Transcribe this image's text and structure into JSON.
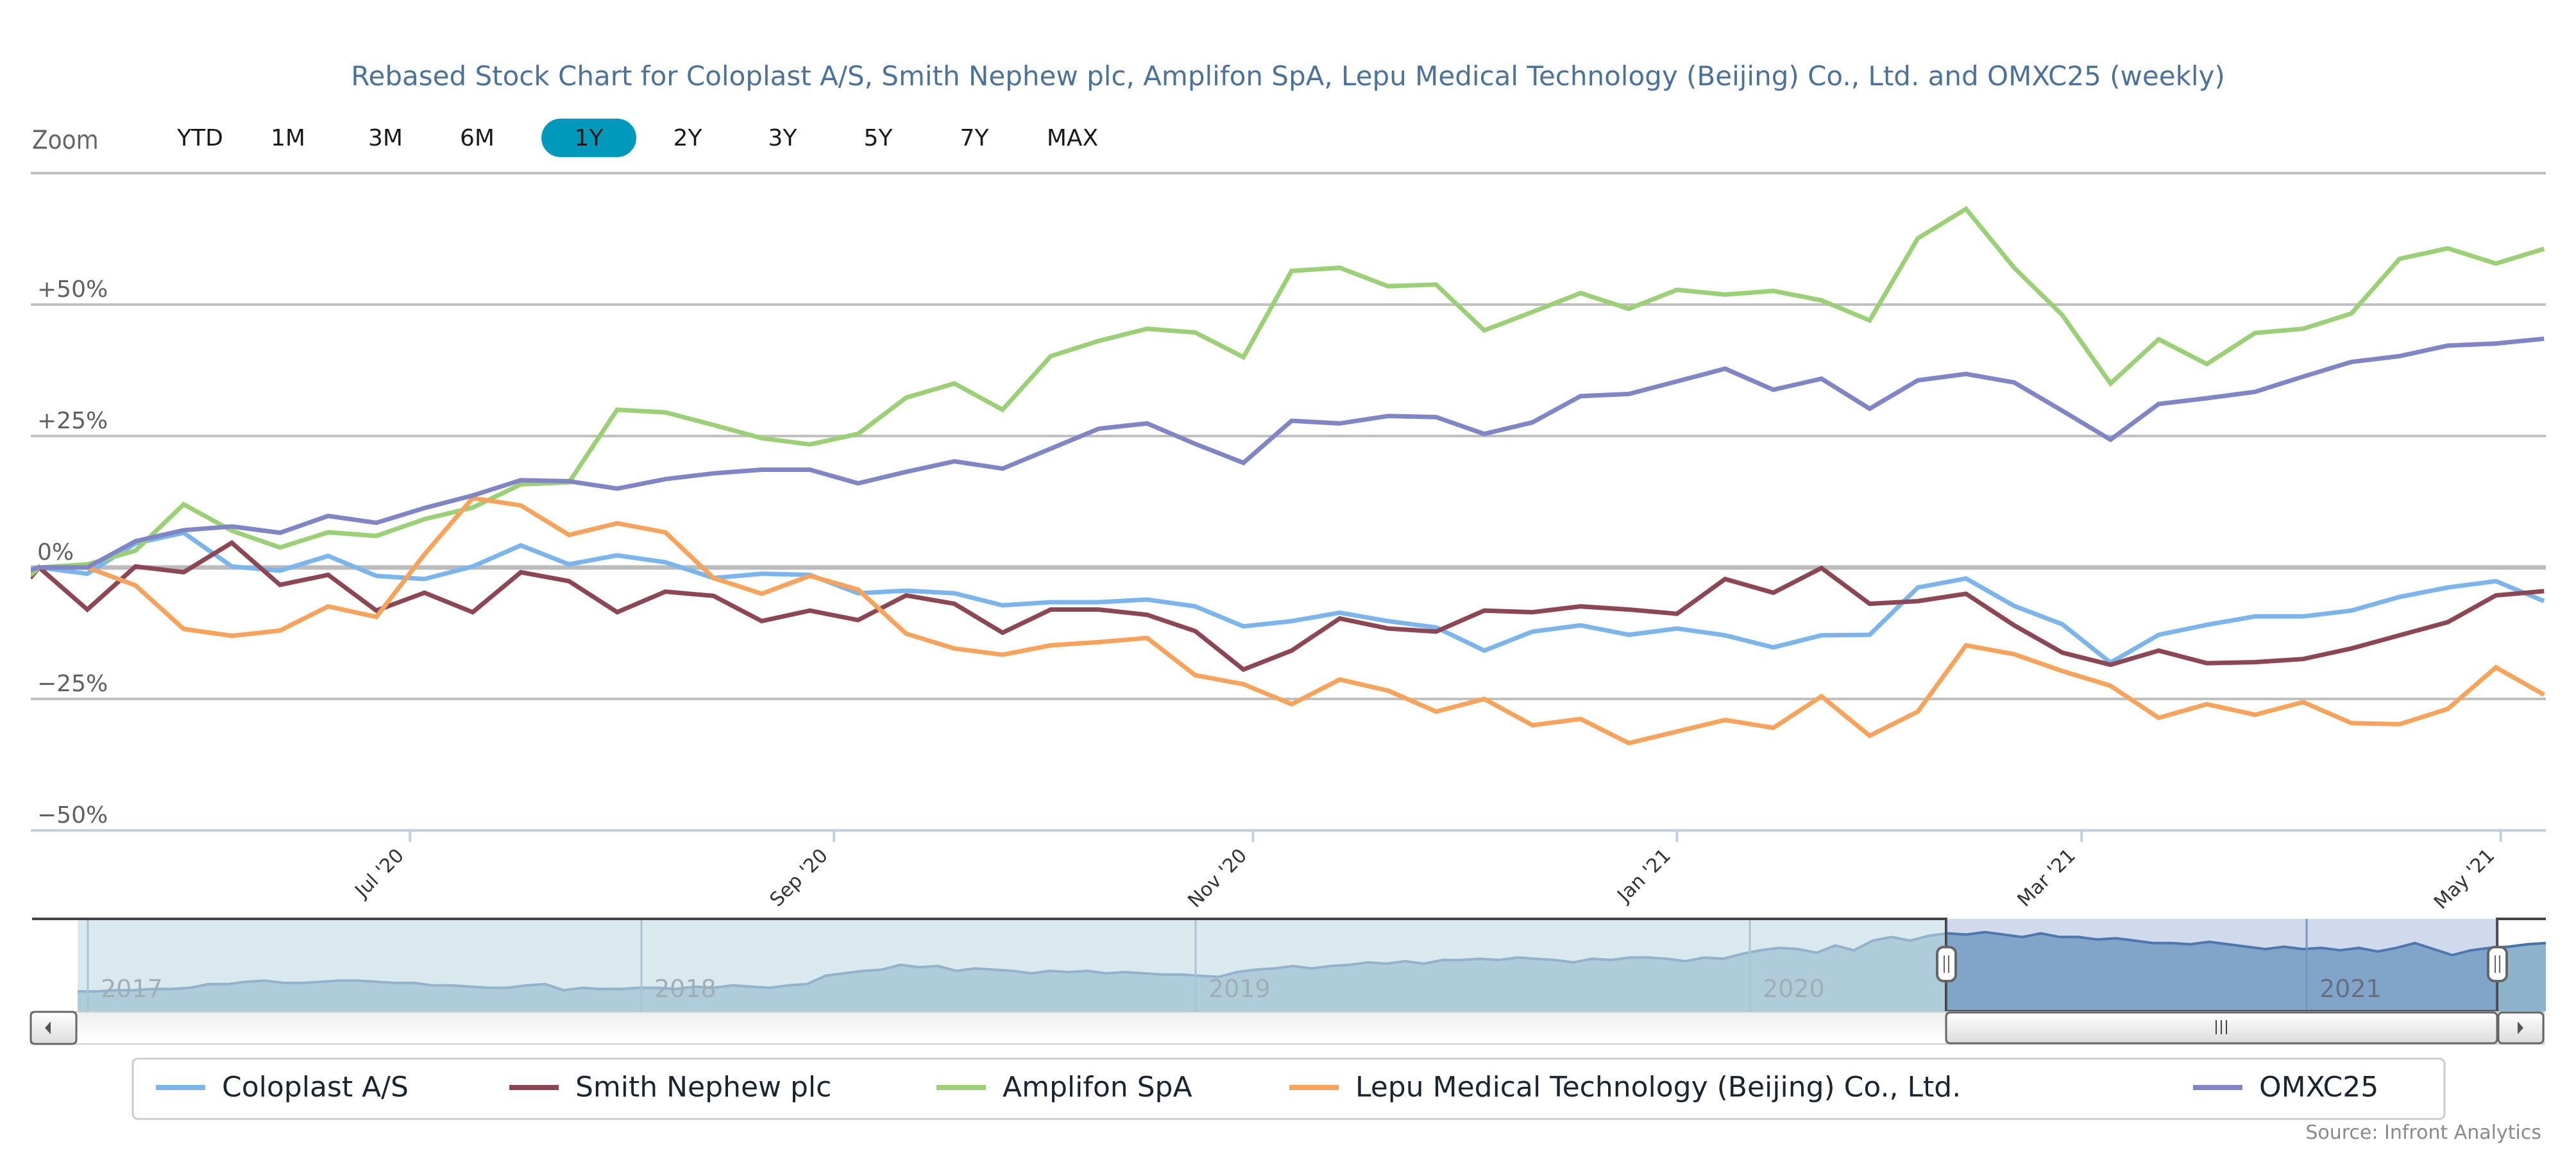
{
  "title": "Rebased Stock Chart for Coloplast A/S, Smith Nephew plc, Amplifon SpA, Lepu Medical Technology (Beijing) Co., Ltd. and OMXC25 (weekly)",
  "range_selector": {
    "label": "Zoom",
    "buttons": [
      "YTD",
      "1M",
      "3M",
      "6M",
      "1Y",
      "2Y",
      "3Y",
      "5Y",
      "7Y",
      "MAX"
    ],
    "selected": "1Y",
    "selected_color": "#0099bb"
  },
  "source": "Source: Infront Analytics",
  "navigator": {
    "years": [
      "2017",
      "2018",
      "2019",
      "2020",
      "2021"
    ],
    "selected_range": [
      "2020-05",
      "2021-05"
    ],
    "handle_icon": "grip-lines-icon",
    "scrollbar": {
      "left_arrow_icon": "triangle-left-icon",
      "right_arrow_icon": "triangle-right-icon",
      "thumb_icon": "grip-lines-icon"
    },
    "series_color": "#4572a7",
    "fill_color": "#8cb3cb",
    "mask_color": "#c4dce4",
    "values": [
      10,
      10,
      11,
      11,
      12,
      12,
      13,
      16,
      16,
      18,
      19,
      17,
      17,
      18,
      19,
      19,
      18,
      17,
      17,
      15,
      15,
      14,
      13,
      13,
      15,
      16,
      11,
      13,
      12,
      12,
      13,
      13,
      12,
      14,
      13,
      15,
      14,
      13,
      15,
      16,
      23,
      25,
      27,
      28,
      32,
      30,
      31,
      27,
      29,
      28,
      27,
      25,
      27,
      26,
      27,
      25,
      26,
      25,
      24,
      24,
      23,
      22,
      26,
      28,
      29,
      31,
      29,
      31,
      32,
      34,
      33,
      35,
      33,
      36,
      36,
      37,
      36,
      38,
      37,
      36,
      34,
      37,
      36,
      38,
      38,
      37,
      35,
      38,
      37,
      41,
      44,
      46,
      45,
      42,
      48,
      44,
      52,
      55,
      52,
      56,
      58,
      57,
      59,
      57,
      55,
      58,
      55,
      55,
      53,
      54,
      52,
      50,
      50,
      49,
      51,
      49,
      47,
      45,
      47,
      45,
      46,
      44,
      46,
      43,
      46,
      50,
      45,
      40,
      44,
      46,
      47,
      49,
      50
    ]
  },
  "chart_data": {
    "type": "line",
    "title": "Rebased Stock Chart for Coloplast A/S, Smith Nephew plc, Amplifon SpA, Lepu Medical Technology (Beijing) Co., Ltd. and OMXC25 (weekly)",
    "xlabel": "",
    "ylabel": "",
    "x_unit": "week index (weekly points, May 2020 - May 2021)",
    "x_count": 53,
    "x_range": [
      -0.17,
      52.05
    ],
    "x_ticks": [
      {
        "label": "Jul '20",
        "x": 7.7
      },
      {
        "label": "Sep '20",
        "x": 16.5
      },
      {
        "label": "Nov '20",
        "x": 25.2
      },
      {
        "label": "Jan '21",
        "x": 34.0
      },
      {
        "label": "Mar '21",
        "x": 42.4
      },
      {
        "label": "May '21",
        "x": 51.1
      }
    ],
    "y_ticks": [
      {
        "label": "+50%",
        "value": 50
      },
      {
        "label": "+25%",
        "value": 25
      },
      {
        "label": "0%",
        "value": 0
      },
      {
        "label": "−25%",
        "value": -25
      },
      {
        "label": "−50%",
        "value": -50
      }
    ],
    "ylim": [
      -50,
      75
    ],
    "grid": true,
    "legend_position": "bottom",
    "series": [
      {
        "name": "Coloplast A/S",
        "color": "#7cb5ec",
        "values": [
          0,
          -1.2,
          4.6,
          6.6,
          0.2,
          -0.6,
          2.2,
          -1.6,
          -2.2,
          0.2,
          4.2,
          0.6,
          2.3,
          1.0,
          -2.0,
          -1.2,
          -1.4,
          -4.9,
          -4.4,
          -4.9,
          -7.2,
          -6.6,
          -6.6,
          -6.1,
          -7.4,
          -11.2,
          -10.2,
          -8.6,
          -10.2,
          -11.4,
          -15.8,
          -12.2,
          -11.0,
          -12.8,
          -11.6,
          -12.9,
          -15.2,
          -12.9,
          -12.8,
          -3.8,
          -2.1,
          -7.3,
          -10.8,
          -18.1,
          -12.8,
          -10.9,
          -9.3,
          -9.3,
          -8.2,
          -5.6,
          -3.8,
          -2.6,
          -6.4
        ]
      },
      {
        "name": "Smith Nephew plc",
        "color": "#8d4654",
        "values": [
          0,
          -8,
          0.2,
          -0.9,
          4.7,
          -3.3,
          -1.4,
          -8.2,
          -4.8,
          -8.5,
          -0.9,
          -2.6,
          -8.5,
          -4.6,
          -5.4,
          -10.2,
          -8.2,
          -10,
          -5.3,
          -6.9,
          -12.4,
          -8,
          -8,
          -9,
          -12.1,
          -19.4,
          -15.8,
          -9.7,
          -11.6,
          -12.2,
          -8.2,
          -8.5,
          -7.4,
          -8,
          -8.8,
          -2.2,
          -4.8,
          -0.1,
          -6.9,
          -6.4,
          -5,
          -11,
          -16.2,
          -18.5,
          -15.8,
          -18.2,
          -18,
          -17.4,
          -15.4,
          -12.9,
          -10.4,
          -5.3,
          -4.5
        ]
      },
      {
        "name": "Amplifon SpA",
        "color": "#9bd077",
        "values": [
          0,
          0.6,
          3.2,
          12,
          7,
          3.8,
          6.7,
          6,
          9.2,
          11.4,
          15.8,
          16.2,
          30,
          29.5,
          27.1,
          24.6,
          23.4,
          25.4,
          32.3,
          35,
          30,
          40.2,
          43.1,
          45.4,
          44.7,
          40,
          56.4,
          57,
          53.5,
          53.8,
          45.1,
          48.6,
          52.2,
          49.2,
          52.8,
          51.9,
          52.6,
          50.8,
          47,
          62.6,
          68.2,
          57,
          48,
          35,
          43.4,
          38.7,
          44.6,
          45.4,
          48.3,
          58.7,
          60.7,
          57.8,
          60.6
        ]
      },
      {
        "name": "Lepu Medical Technology (Beijing) Co., Ltd.",
        "color": "#f7a35c",
        "values": [
          0,
          0,
          -3.4,
          -11.7,
          -13,
          -12,
          -7.4,
          -9.4,
          2.5,
          13.2,
          11.8,
          6.2,
          8.4,
          6.7,
          -2,
          -5,
          -1.6,
          -4.2,
          -12.6,
          -15.4,
          -16.6,
          -14.8,
          -14.2,
          -13.4,
          -20.5,
          -22.2,
          -26,
          -21.3,
          -23.4,
          -27.4,
          -25,
          -30,
          -28.8,
          -33.4,
          -31.2,
          -29,
          -30.5,
          -24.5,
          -32,
          -27.4,
          -14.8,
          -16.5,
          -19.7,
          -22.5,
          -28.6,
          -26,
          -28,
          -25.6,
          -29.6,
          -29.8,
          -26.9,
          -19,
          -24.2
        ]
      },
      {
        "name": "OMXC25",
        "color": "#8085c6",
        "values": [
          0,
          0,
          5,
          7.1,
          7.8,
          6.6,
          9.8,
          8.5,
          11.3,
          13.7,
          16.6,
          16.4,
          15,
          16.8,
          17.9,
          18.6,
          18.6,
          16,
          18.2,
          20.2,
          18.8,
          22.6,
          26.4,
          27.4,
          23.5,
          19.9,
          27.9,
          27.4,
          28.8,
          28.6,
          25.4,
          27.6,
          32.6,
          33,
          35.4,
          37.8,
          33.8,
          35.9,
          30.2,
          35.6,
          36.8,
          35.2,
          29.8,
          24.3,
          31.1,
          32.2,
          33.4,
          36.3,
          39.1,
          40.2,
          42.2,
          42.6,
          43.5
        ]
      }
    ]
  }
}
